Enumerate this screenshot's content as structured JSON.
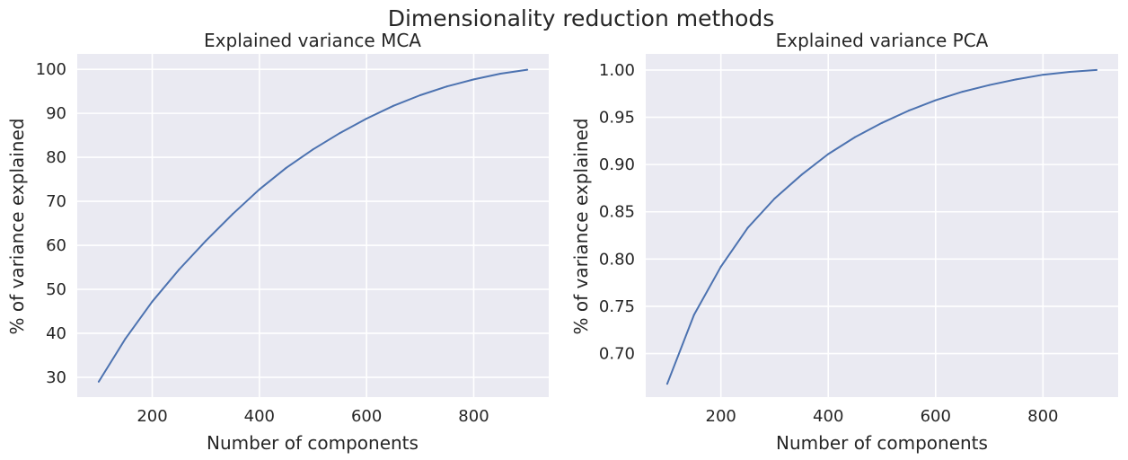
{
  "figure": {
    "suptitle": "Dimensionality reduction methods",
    "background": "#ffffff",
    "axes_facecolor": "#eaeaf2",
    "grid_color": "#ffffff",
    "line_color": "#4c72b0",
    "text_color": "#262626"
  },
  "chart_data": [
    {
      "type": "line",
      "title": "Explained variance MCA",
      "xlabel": "Number of components",
      "ylabel": "% of variance explained",
      "xlim": [
        60,
        940
      ],
      "ylim": [
        25.5,
        103.5
      ],
      "xticks": [
        200,
        400,
        600,
        800
      ],
      "yticks": [
        30,
        40,
        50,
        60,
        70,
        80,
        90,
        100
      ],
      "ytick_labels": [
        "30",
        "40",
        "50",
        "60",
        "70",
        "80",
        "90",
        "100"
      ],
      "grid": true,
      "series": [
        {
          "x": [
            100,
            150,
            200,
            250,
            300,
            350,
            400,
            450,
            500,
            550,
            600,
            650,
            700,
            750,
            800,
            850,
            900
          ],
          "values": [
            29.0,
            38.8,
            47.2,
            54.5,
            61.0,
            67.1,
            72.7,
            77.6,
            81.8,
            85.5,
            88.8,
            91.7,
            94.1,
            96.1,
            97.7,
            99.0,
            99.9
          ]
        }
      ]
    },
    {
      "type": "line",
      "title": "Explained variance PCA",
      "xlabel": "Number of components",
      "ylabel": "% of variance explained",
      "xlim": [
        60,
        940
      ],
      "ylim": [
        0.654,
        1.017
      ],
      "xticks": [
        200,
        400,
        600,
        800
      ],
      "yticks": [
        0.7,
        0.75,
        0.8,
        0.85,
        0.9,
        0.95,
        1.0
      ],
      "ytick_labels": [
        "0.70",
        "0.75",
        "0.80",
        "0.85",
        "0.90",
        "0.95",
        "1.00"
      ],
      "grid": true,
      "series": [
        {
          "x": [
            100,
            150,
            200,
            250,
            300,
            350,
            400,
            450,
            500,
            550,
            600,
            650,
            700,
            750,
            800,
            850,
            900
          ],
          "values": [
            0.668,
            0.741,
            0.792,
            0.833,
            0.864,
            0.889,
            0.911,
            0.929,
            0.944,
            0.957,
            0.968,
            0.977,
            0.984,
            0.99,
            0.995,
            0.998,
            1.0
          ]
        }
      ]
    }
  ]
}
